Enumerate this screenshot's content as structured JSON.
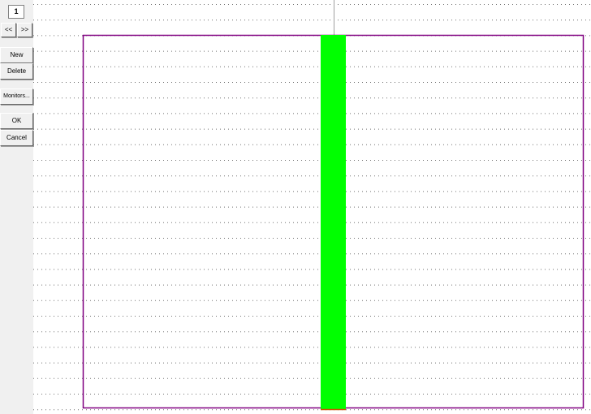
{
  "window": {
    "page_number": "1"
  },
  "nav": {
    "prev_label": "<<",
    "next_label": ">>"
  },
  "toolbar": {
    "new_label": "New",
    "delete_label": "Delete",
    "monitors_label": "Monitors...",
    "ok_label": "OK",
    "cancel_label": "Cancel"
  },
  "colors": {
    "background": "#ffffff",
    "panel": "#f0f0f0",
    "frame": "#800080",
    "bar": "#00ff00",
    "bar_edge": "#d05000",
    "grid": "#707070"
  }
}
